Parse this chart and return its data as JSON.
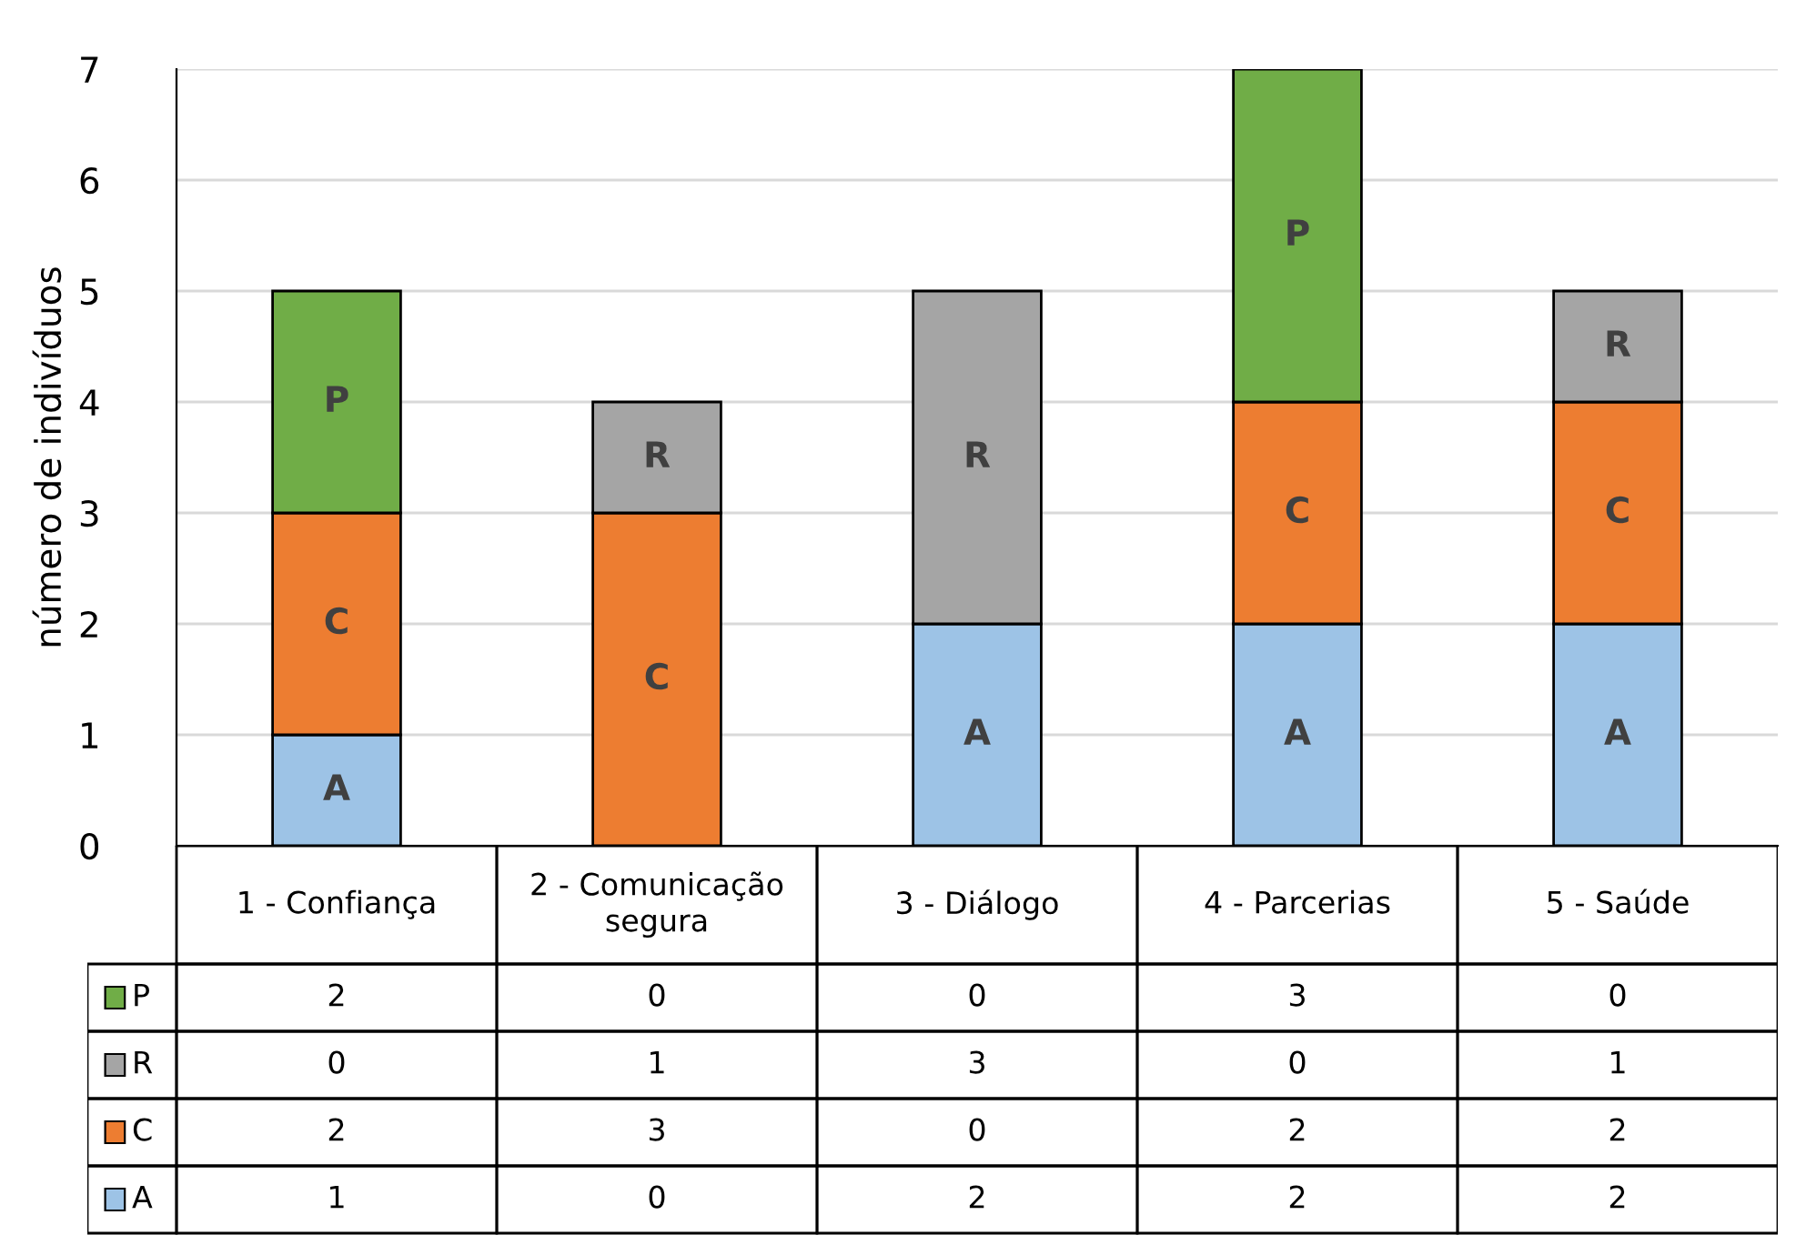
{
  "chart_data": {
    "type": "bar",
    "stacked": true,
    "ylabel": "número de indivíduos",
    "categories": [
      "1 - Confiança",
      "2 - Comunicação\nsegura",
      "3 - Diálogo",
      "4 - Parcerias",
      "5 - Saúde"
    ],
    "series": [
      {
        "name": "A",
        "color": "#9dc3e6",
        "values": [
          1,
          0,
          2,
          2,
          2
        ]
      },
      {
        "name": "C",
        "color": "#ed7d31",
        "values": [
          2,
          3,
          0,
          2,
          2
        ]
      },
      {
        "name": "R",
        "color": "#a5a5a5",
        "values": [
          0,
          1,
          3,
          0,
          1
        ]
      },
      {
        "name": "P",
        "color": "#70ad47",
        "values": [
          2,
          0,
          0,
          3,
          0
        ]
      }
    ],
    "ylim": [
      0,
      7
    ],
    "yticks": [
      0,
      1,
      2,
      3,
      4,
      5,
      6,
      7
    ],
    "grid": "y",
    "data_labels": true,
    "legend": "bottom left"
  }
}
